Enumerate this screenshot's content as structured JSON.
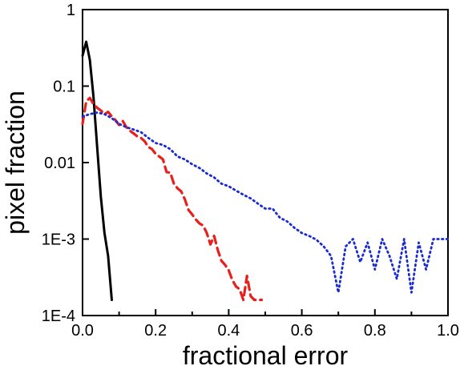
{
  "chart_data": {
    "type": "line",
    "title": "",
    "xlabel": "fractional error",
    "ylabel": "pixel fraction",
    "xlim": [
      0.0,
      1.0
    ],
    "ylim": [
      0.0001,
      1
    ],
    "yscale": "log",
    "grid": false,
    "legend": "none",
    "x_ticks": [
      {
        "value": 0.0,
        "label": "0.0"
      },
      {
        "value": 0.2,
        "label": "0.2"
      },
      {
        "value": 0.4,
        "label": "0.4"
      },
      {
        "value": 0.6,
        "label": "0.6"
      },
      {
        "value": 0.8,
        "label": "0.8"
      },
      {
        "value": 1.0,
        "label": "1.0"
      }
    ],
    "y_ticks": [
      {
        "value": 1,
        "label": "1"
      },
      {
        "value": 0.1,
        "label": "0.1"
      },
      {
        "value": 0.01,
        "label": "0.01"
      },
      {
        "value": 0.001,
        "label": "1E-3"
      },
      {
        "value": 0.0001,
        "label": "1E-4"
      }
    ],
    "series": [
      {
        "color": "#000000",
        "style": "solid",
        "x": [
          0.0,
          0.01,
          0.02,
          0.03,
          0.04,
          0.05,
          0.06,
          0.07,
          0.08
        ],
        "y": [
          0.25,
          0.38,
          0.22,
          0.072,
          0.016,
          0.0036,
          0.0012,
          0.0006,
          0.00016
        ]
      },
      {
        "color": "#e8201c",
        "style": "dashed",
        "x": [
          0.0,
          0.01,
          0.02,
          0.03,
          0.04,
          0.05,
          0.06,
          0.07,
          0.08,
          0.09,
          0.1,
          0.11,
          0.12,
          0.13,
          0.14,
          0.15,
          0.16,
          0.17,
          0.18,
          0.19,
          0.2,
          0.21,
          0.22,
          0.23,
          0.24,
          0.25,
          0.26,
          0.27,
          0.28,
          0.29,
          0.3,
          0.31,
          0.32,
          0.33,
          0.34,
          0.35,
          0.36,
          0.37,
          0.38,
          0.39,
          0.4,
          0.41,
          0.42,
          0.43,
          0.44,
          0.45,
          0.46,
          0.47,
          0.48,
          0.49
        ],
        "y": [
          0.032,
          0.063,
          0.07,
          0.058,
          0.052,
          0.048,
          0.043,
          0.046,
          0.04,
          0.036,
          0.031,
          0.035,
          0.029,
          0.026,
          0.024,
          0.022,
          0.021,
          0.019,
          0.016,
          0.015,
          0.013,
          0.012,
          0.011,
          0.0075,
          0.0074,
          0.0053,
          0.0046,
          0.0042,
          0.0033,
          0.0024,
          0.0021,
          0.0018,
          0.0016,
          0.0015,
          0.0012,
          0.00085,
          0.0011,
          0.00072,
          0.00052,
          0.00046,
          0.00039,
          0.00029,
          0.00024,
          0.00022,
          0.00016,
          0.00033,
          0.00018,
          0.00016,
          0.00016,
          0.00016
        ]
      },
      {
        "color": "#1a2bd0",
        "style": "dotted",
        "x": [
          0.0,
          0.02,
          0.04,
          0.06,
          0.08,
          0.1,
          0.12,
          0.14,
          0.16,
          0.18,
          0.2,
          0.22,
          0.24,
          0.26,
          0.28,
          0.3,
          0.32,
          0.34,
          0.36,
          0.38,
          0.4,
          0.42,
          0.44,
          0.46,
          0.48,
          0.5,
          0.52,
          0.54,
          0.56,
          0.58,
          0.6,
          0.62,
          0.64,
          0.66,
          0.68,
          0.7,
          0.72,
          0.74,
          0.76,
          0.78,
          0.8,
          0.82,
          0.84,
          0.86,
          0.88,
          0.9,
          0.92,
          0.94,
          0.96,
          0.98,
          1.0
        ],
        "y": [
          0.04,
          0.043,
          0.045,
          0.043,
          0.038,
          0.032,
          0.029,
          0.027,
          0.025,
          0.021,
          0.018,
          0.017,
          0.015,
          0.012,
          0.011,
          0.0095,
          0.0085,
          0.0072,
          0.0064,
          0.0053,
          0.0049,
          0.0043,
          0.0038,
          0.0034,
          0.0029,
          0.0025,
          0.0025,
          0.0019,
          0.0017,
          0.0014,
          0.0012,
          0.0011,
          0.00098,
          0.0008,
          0.0006,
          0.0002,
          0.0008,
          0.001,
          0.0005,
          0.0009,
          0.0004,
          0.001,
          0.0006,
          0.0003,
          0.001,
          0.0002,
          0.0009,
          0.0004,
          0.001,
          0.001,
          0.001
        ]
      }
    ]
  }
}
